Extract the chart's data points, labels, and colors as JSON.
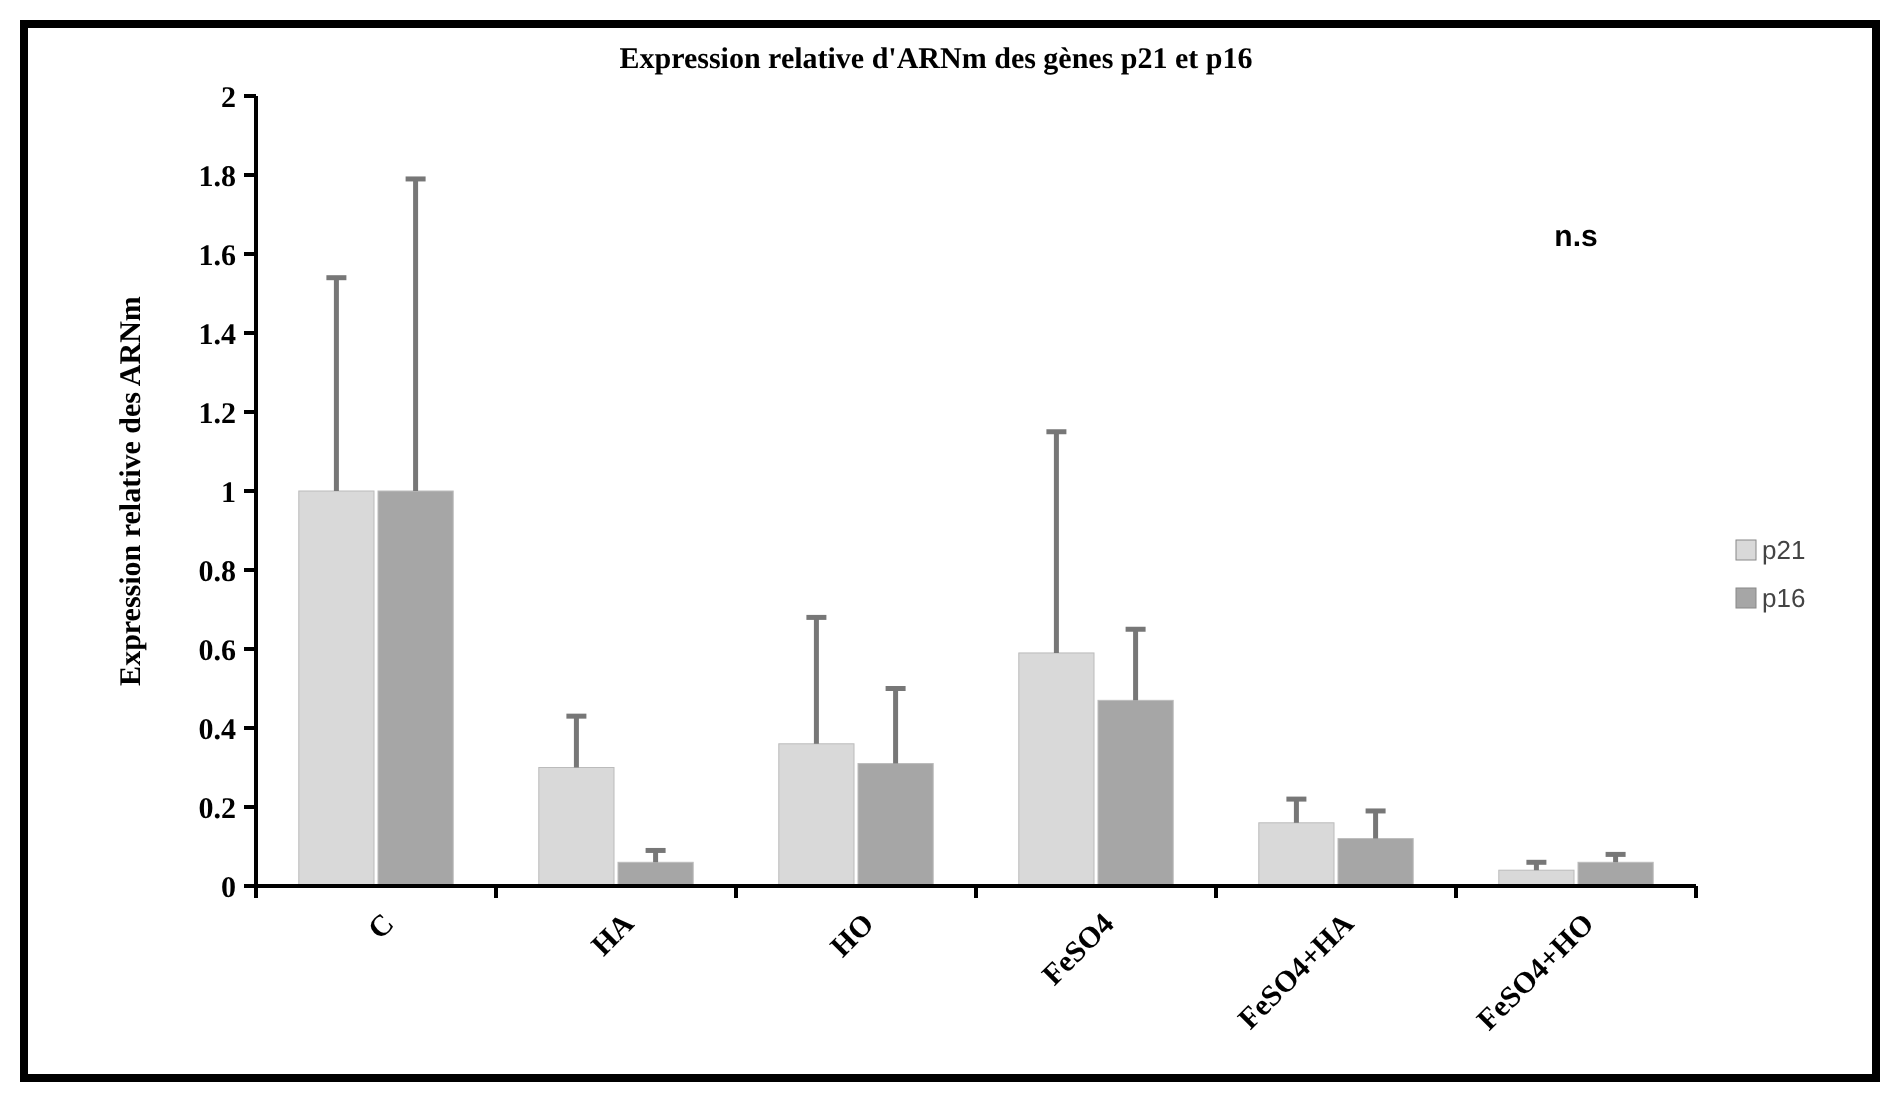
{
  "chart_data": {
    "type": "bar",
    "title": "Expression relative d'ARNm des gènes p21 et p16",
    "ylabel": "Expression relative des ARNm",
    "categories": [
      "C",
      "HA",
      "HO",
      "FeSO4",
      "FeSO4+HA",
      "FeSO4+HO"
    ],
    "series": [
      {
        "name": "p21",
        "color": "#d9d9d9",
        "values": [
          1.0,
          0.3,
          0.36,
          0.59,
          0.16,
          0.04
        ],
        "errors": [
          [
            1.0,
            1.54
          ],
          [
            0.3,
            0.43
          ],
          [
            0.36,
            0.68
          ],
          [
            0.59,
            1.15
          ],
          [
            0.16,
            0.22
          ],
          [
            0.04,
            0.06
          ]
        ]
      },
      {
        "name": "p16",
        "color": "#a6a6a6",
        "values": [
          1.0,
          0.06,
          0.31,
          0.47,
          0.12,
          0.06
        ],
        "errors": [
          [
            1.0,
            1.79
          ],
          [
            0.06,
            0.09
          ],
          [
            0.31,
            0.5
          ],
          [
            0.47,
            0.65
          ],
          [
            0.12,
            0.19
          ],
          [
            0.06,
            0.08
          ]
        ]
      }
    ],
    "ylim": [
      0,
      2
    ],
    "yticks": [
      0,
      0.2,
      0.4,
      0.6,
      0.8,
      1,
      1.2,
      1.4,
      1.6,
      1.8,
      2
    ],
    "grid": false,
    "legend": "right",
    "annotations": [
      "n.s"
    ]
  }
}
